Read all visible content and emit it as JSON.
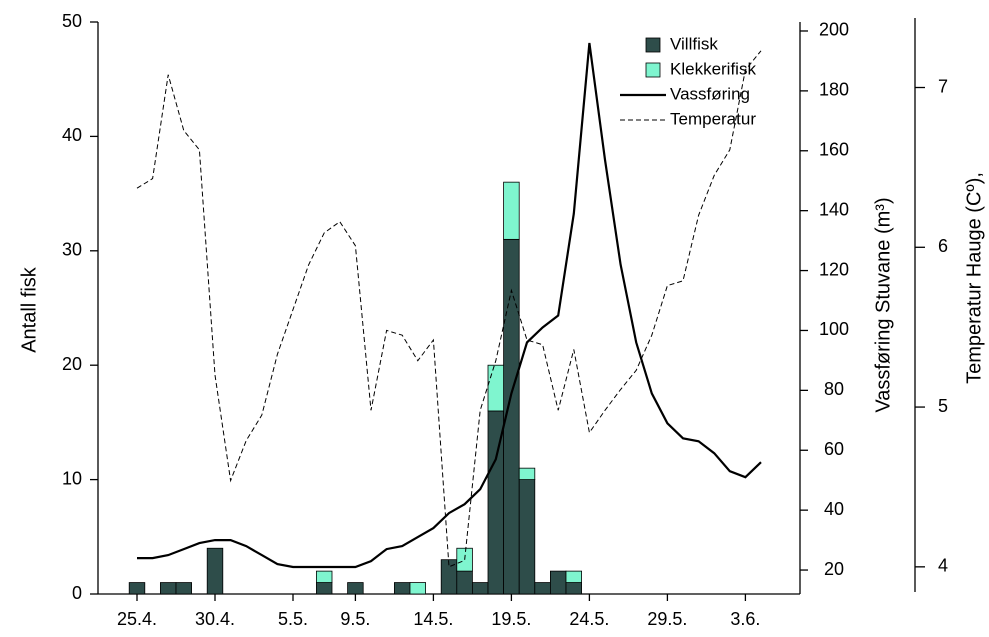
{
  "chart_data": {
    "type": "bar",
    "ylabel": "Antall fisk",
    "y2label": "Vassføring Stuvane (m³)",
    "y3label": "Temperatur Hauge (Cº),",
    "categories": [
      "25.4.",
      null,
      null,
      null,
      null,
      "30.4.",
      null,
      null,
      null,
      null,
      "5.5.",
      null,
      null,
      null,
      "9.5.",
      null,
      null,
      null,
      null,
      "14.5.",
      null,
      null,
      null,
      null,
      "19.5.",
      null,
      null,
      null,
      null,
      "24.5.",
      null,
      null,
      null,
      null,
      "29.5.",
      null,
      null,
      null,
      null,
      "3.6.",
      null
    ],
    "ylim": [
      0,
      50
    ],
    "yticks": [
      0,
      10,
      20,
      30,
      40,
      50
    ],
    "y2lim": [
      12,
      203
    ],
    "y2ticks": [
      20,
      40,
      60,
      80,
      100,
      120,
      140,
      160,
      180,
      200
    ],
    "y3lim": [
      3.83,
      7.41
    ],
    "y3ticks": [
      4,
      5,
      6,
      7
    ],
    "legend": "top-right",
    "series": [
      {
        "name": "Villfisk",
        "type": "bar",
        "color": "#2e4d4a",
        "values": [
          1,
          0,
          1,
          1,
          0,
          4,
          0,
          0,
          0,
          0,
          0,
          0,
          1,
          0,
          1,
          0,
          0,
          1,
          0,
          0,
          3,
          2,
          1,
          16,
          31,
          10,
          1,
          2,
          1,
          0,
          0,
          0,
          0,
          0,
          0,
          0,
          0,
          0,
          0,
          0,
          0
        ]
      },
      {
        "name": "Klekkerifisk",
        "type": "bar",
        "color": "#7ff5cf",
        "values": [
          0,
          0,
          0,
          0,
          0,
          0,
          0,
          0,
          0,
          0,
          0,
          0,
          1,
          0,
          0,
          0,
          0,
          0,
          1,
          0,
          0,
          2,
          0,
          4,
          5,
          1,
          0,
          0,
          1,
          0,
          0,
          0,
          0,
          0,
          0,
          0,
          0,
          0,
          0,
          0,
          0
        ]
      },
      {
        "name": "Vassføring",
        "type": "line",
        "axis": "y2",
        "color": "#000000",
        "linestyle": "solid",
        "values": [
          24,
          24,
          25,
          27,
          29,
          30,
          30,
          28,
          25,
          22,
          21,
          21,
          21,
          21,
          21,
          23,
          27,
          28,
          31,
          34,
          39,
          42,
          47,
          57,
          79,
          96,
          101,
          105,
          139,
          196,
          157,
          122,
          96,
          79,
          69,
          64,
          63,
          59,
          53,
          51,
          56
        ]
      },
      {
        "name": "Temperatur",
        "type": "line",
        "axis": "y3",
        "color": "#000000",
        "linestyle": "dashed",
        "values": [
          6.37,
          6.43,
          7.08,
          6.73,
          6.61,
          5.2,
          4.54,
          4.79,
          4.95,
          5.33,
          5.61,
          5.89,
          6.09,
          6.16,
          6.01,
          4.98,
          5.48,
          5.45,
          5.29,
          5.42,
          4.0,
          4.04,
          4.98,
          5.29,
          5.73,
          5.42,
          5.39,
          4.98,
          5.36,
          4.84,
          4.98,
          5.11,
          5.23,
          5.45,
          5.76,
          5.79,
          6.2,
          6.45,
          6.61,
          7.11,
          7.23
        ]
      }
    ]
  }
}
